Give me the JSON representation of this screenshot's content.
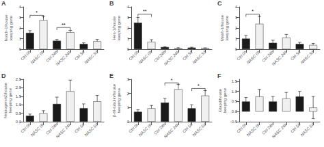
{
  "chart_data": [
    {
      "type": "bar",
      "title": "A",
      "ylabel": "Notch-1/house\nkeeping gene",
      "categories": [
        "Ctrl 0h",
        "NASC 0h",
        "Ctrl 24h",
        "NASC 24h",
        "Ctrl 5d",
        "NASC 5d"
      ],
      "values": [
        1.55,
        2.75,
        0.8,
        1.6,
        0.5,
        0.75
      ],
      "errors": [
        0.2,
        0.35,
        0.12,
        0.18,
        0.1,
        0.18
      ],
      "colors": [
        "#1a1a1a",
        "#f0f0f0",
        "#1a1a1a",
        "#f0f0f0",
        "#1a1a1a",
        "#f0f0f0"
      ],
      "ylim": [
        0,
        4
      ],
      "yticks": [
        0,
        1,
        2,
        3,
        4
      ],
      "grid": false,
      "annotations": [
        {
          "text": "*",
          "x1": "Ctrl 0h",
          "x2": "NASC 0h",
          "y": 3.2
        },
        {
          "text": "**",
          "x1": "Ctrl 24h",
          "x2": "NASC 24h",
          "y": 2.05
        }
      ]
    },
    {
      "type": "bar",
      "title": "B",
      "ylabel": "Hes-1/house\nkeeping gene",
      "categories": [
        "Ctrl 0h",
        "NASC 0h",
        "Ctrl 24h",
        "NASC 24h",
        "Ctrl 5d",
        "NASC 5d"
      ],
      "values": [
        2.5,
        0.7,
        0.2,
        0.1,
        0.15,
        0.1
      ],
      "errors": [
        0.5,
        0.2,
        0.05,
        0.04,
        0.04,
        0.03
      ],
      "colors": [
        "#1a1a1a",
        "#f0f0f0",
        "#1a1a1a",
        "#f0f0f0",
        "#1a1a1a",
        "#f0f0f0"
      ],
      "ylim": [
        0,
        4
      ],
      "yticks": [
        0,
        1,
        2,
        3,
        4
      ],
      "grid": false,
      "annotations": [
        {
          "text": "**",
          "x1": "Ctrl 0h",
          "x2": "NASC 0h",
          "y": 3.3
        }
      ]
    },
    {
      "type": "bar",
      "title": "C",
      "ylabel": "Mash-1/house\nkeeping gene",
      "categories": [
        "Ctrl 0h",
        "NASC 0h",
        "Ctrl 24h",
        "NASC 24h",
        "Ctrl 5d",
        "NASC 5d"
      ],
      "values": [
        1.0,
        2.4,
        0.6,
        1.1,
        0.5,
        0.4
      ],
      "errors": [
        0.3,
        0.7,
        0.25,
        0.3,
        0.15,
        0.15
      ],
      "colors": [
        "#1a1a1a",
        "#f0f0f0",
        "#1a1a1a",
        "#f0f0f0",
        "#1a1a1a",
        "#f0f0f0"
      ],
      "ylim": [
        0,
        4
      ],
      "yticks": [
        0,
        1,
        2,
        3,
        4
      ],
      "grid": false,
      "annotations": [
        {
          "text": "*",
          "x1": "Ctrl 0h",
          "x2": "NASC 0h",
          "y": 3.3
        }
      ]
    },
    {
      "type": "bar",
      "title": "D",
      "ylabel": "Neurogenin2/house\nkeeping gene",
      "categories": [
        "Ctrl 0h",
        "NASC 0h",
        "Ctrl 24h",
        "NASC 24h",
        "Ctrl 5d",
        "NASC 5d"
      ],
      "values": [
        0.35,
        0.5,
        1.05,
        1.8,
        0.8,
        1.2
      ],
      "errors": [
        0.1,
        0.15,
        0.4,
        0.65,
        0.25,
        0.35
      ],
      "colors": [
        "#1a1a1a",
        "#f0f0f0",
        "#1a1a1a",
        "#f0f0f0",
        "#1a1a1a",
        "#f0f0f0"
      ],
      "ylim": [
        0,
        2.5
      ],
      "yticks": [
        {
          "value": 0,
          "label": "0.0"
        },
        0.5,
        {
          "value": 1.0,
          "label": "1.0"
        },
        1.5,
        {
          "value": 2.0,
          "label": "2.0"
        },
        2.5
      ],
      "grid": false
    },
    {
      "type": "bar",
      "title": "E",
      "ylabel": "β-III-tubulin/house\nkeeping gene",
      "categories": [
        "Ctrl 0h",
        "NASC 0h",
        "Ctrl 24h",
        "NASC 24h",
        "Ctrl 5d",
        "NASC 5d"
      ],
      "values": [
        0.7,
        0.95,
        1.35,
        2.3,
        0.95,
        1.85
      ],
      "errors": [
        0.15,
        0.2,
        0.3,
        0.35,
        0.25,
        0.35
      ],
      "colors": [
        "#1a1a1a",
        "#f0f0f0",
        "#1a1a1a",
        "#f0f0f0",
        "#1a1a1a",
        "#f0f0f0"
      ],
      "ylim": [
        0,
        3
      ],
      "yticks": [
        0,
        1,
        2,
        3
      ],
      "grid": false,
      "annotations": [
        {
          "text": "*",
          "x1": "Ctrl 24h",
          "x2": "NASC 24h",
          "y": 2.75
        },
        {
          "text": "*",
          "x1": "Ctrl 5d",
          "x2": "NASC 5d",
          "y": 2.35
        }
      ]
    },
    {
      "type": "bar",
      "title": "F",
      "ylabel": "Gtapd/house\nkeeping gene",
      "categories": [
        "Ctrl 0h",
        "NASC 0h",
        "Ctrl 24h",
        "NASC 24h",
        "Ctrl 5d",
        "NASC 5d"
      ],
      "values": [
        0.5,
        0.75,
        0.5,
        0.65,
        0.75,
        0.2
      ],
      "errors": [
        0.2,
        0.35,
        0.25,
        0.3,
        0.25,
        0.55
      ],
      "colors": [
        "#1a1a1a",
        "#f0f0f0",
        "#1a1a1a",
        "#f0f0f0",
        "#1a1a1a",
        "#f0f0f0"
      ],
      "ylim": [
        -0.5,
        1.6
      ],
      "yticks": [
        -0.5,
        {
          "value": 0.0,
          "label": "0.0"
        },
        0.5,
        {
          "value": 1.0,
          "label": "1.0"
        },
        1.5
      ],
      "grid": false
    }
  ]
}
